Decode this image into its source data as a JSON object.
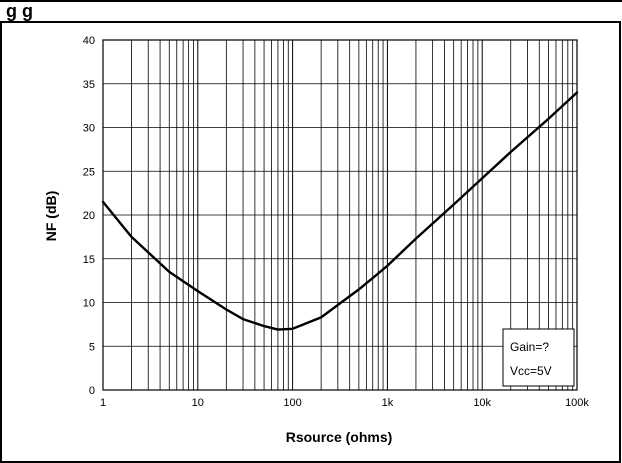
{
  "header": {
    "partial_title": "g           g"
  },
  "chart_data": {
    "type": "line",
    "title": "",
    "xlabel": "Rsource (ohms)",
    "ylabel": "NF (dB)",
    "xscale": "log",
    "xlim": [
      1,
      100000
    ],
    "ylim": [
      0,
      40
    ],
    "grid": true,
    "x_ticks": [
      {
        "value": 1,
        "label": "1"
      },
      {
        "value": 10,
        "label": "10"
      },
      {
        "value": 100,
        "label": "100"
      },
      {
        "value": 1000,
        "label": "1k"
      },
      {
        "value": 10000,
        "label": "10k"
      },
      {
        "value": 100000,
        "label": "100k"
      }
    ],
    "y_ticks": [
      0,
      5,
      10,
      15,
      20,
      25,
      30,
      35,
      40
    ],
    "series": [
      {
        "x": [
          1,
          2,
          5,
          10,
          20,
          30,
          50,
          70,
          100,
          200,
          500,
          1000,
          2000,
          5000,
          10000,
          20000,
          50000,
          100000
        ],
        "y": [
          21.5,
          17.5,
          13.5,
          11.3,
          9.2,
          8.1,
          7.3,
          6.9,
          7.0,
          8.3,
          11.5,
          14.2,
          17.3,
          21.2,
          24.2,
          27.2,
          31.0,
          34.0
        ]
      }
    ],
    "annotations": [
      {
        "text": "Gain=?",
        "position": "bottom-right"
      },
      {
        "text": "Vcc=5V",
        "position": "bottom-right"
      }
    ],
    "colors": {
      "line": "#000000",
      "grid": "#000000",
      "background": "#ffffff"
    }
  }
}
